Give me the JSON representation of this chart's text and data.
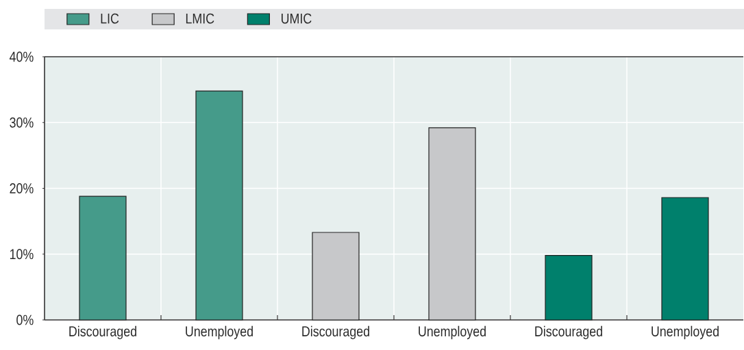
{
  "chart_data": {
    "type": "bar",
    "categories": [
      "Discouraged",
      "Unemployed",
      "Discouraged",
      "Unemployed",
      "Discouraged",
      "Unemployed"
    ],
    "series": [
      {
        "name": "LIC",
        "color": "#459b8a",
        "values": [
          18.8,
          34.8,
          null,
          null,
          null,
          null
        ]
      },
      {
        "name": "LMIC",
        "color": "#c7c8ca",
        "values": [
          null,
          null,
          13.3,
          29.2,
          null,
          null
        ]
      },
      {
        "name": "UMIC",
        "color": "#00806c",
        "values": [
          null,
          null,
          null,
          null,
          9.8,
          18.6
        ]
      }
    ],
    "ylim": [
      0,
      40
    ],
    "yticks": [
      {
        "value": 0,
        "label": "0%"
      },
      {
        "value": 10,
        "label": "10%"
      },
      {
        "value": 20,
        "label": "20%"
      },
      {
        "value": 30,
        "label": "30%"
      },
      {
        "value": 40,
        "label": "40%"
      }
    ],
    "grid": true,
    "legend": "top"
  }
}
